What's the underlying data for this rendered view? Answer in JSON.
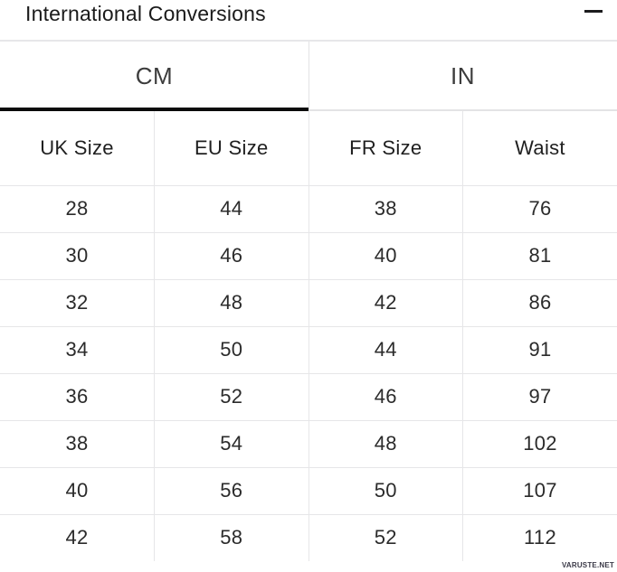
{
  "header": {
    "title": "International Conversions",
    "collapse_icon": "minus-icon"
  },
  "tabs": [
    {
      "label": "CM",
      "active": true
    },
    {
      "label": "IN",
      "active": false
    }
  ],
  "table": {
    "columns": [
      "UK Size",
      "EU Size",
      "FR Size",
      "Waist"
    ],
    "rows": [
      [
        "28",
        "44",
        "38",
        "76"
      ],
      [
        "30",
        "46",
        "40",
        "81"
      ],
      [
        "32",
        "48",
        "42",
        "86"
      ],
      [
        "34",
        "50",
        "44",
        "91"
      ],
      [
        "36",
        "52",
        "46",
        "97"
      ],
      [
        "38",
        "54",
        "48",
        "102"
      ],
      [
        "40",
        "56",
        "50",
        "107"
      ],
      [
        "42",
        "58",
        "52",
        "112"
      ]
    ]
  },
  "watermark": "VARUSTE.NET",
  "colors": {
    "background": "#ffffff",
    "title_text": "#1a1a1a",
    "tab_text": "#3c3c3c",
    "cell_text": "#2b2b2b",
    "active_tab_underline": "#0b0b0b",
    "grid_border": "#e6e6e8"
  }
}
